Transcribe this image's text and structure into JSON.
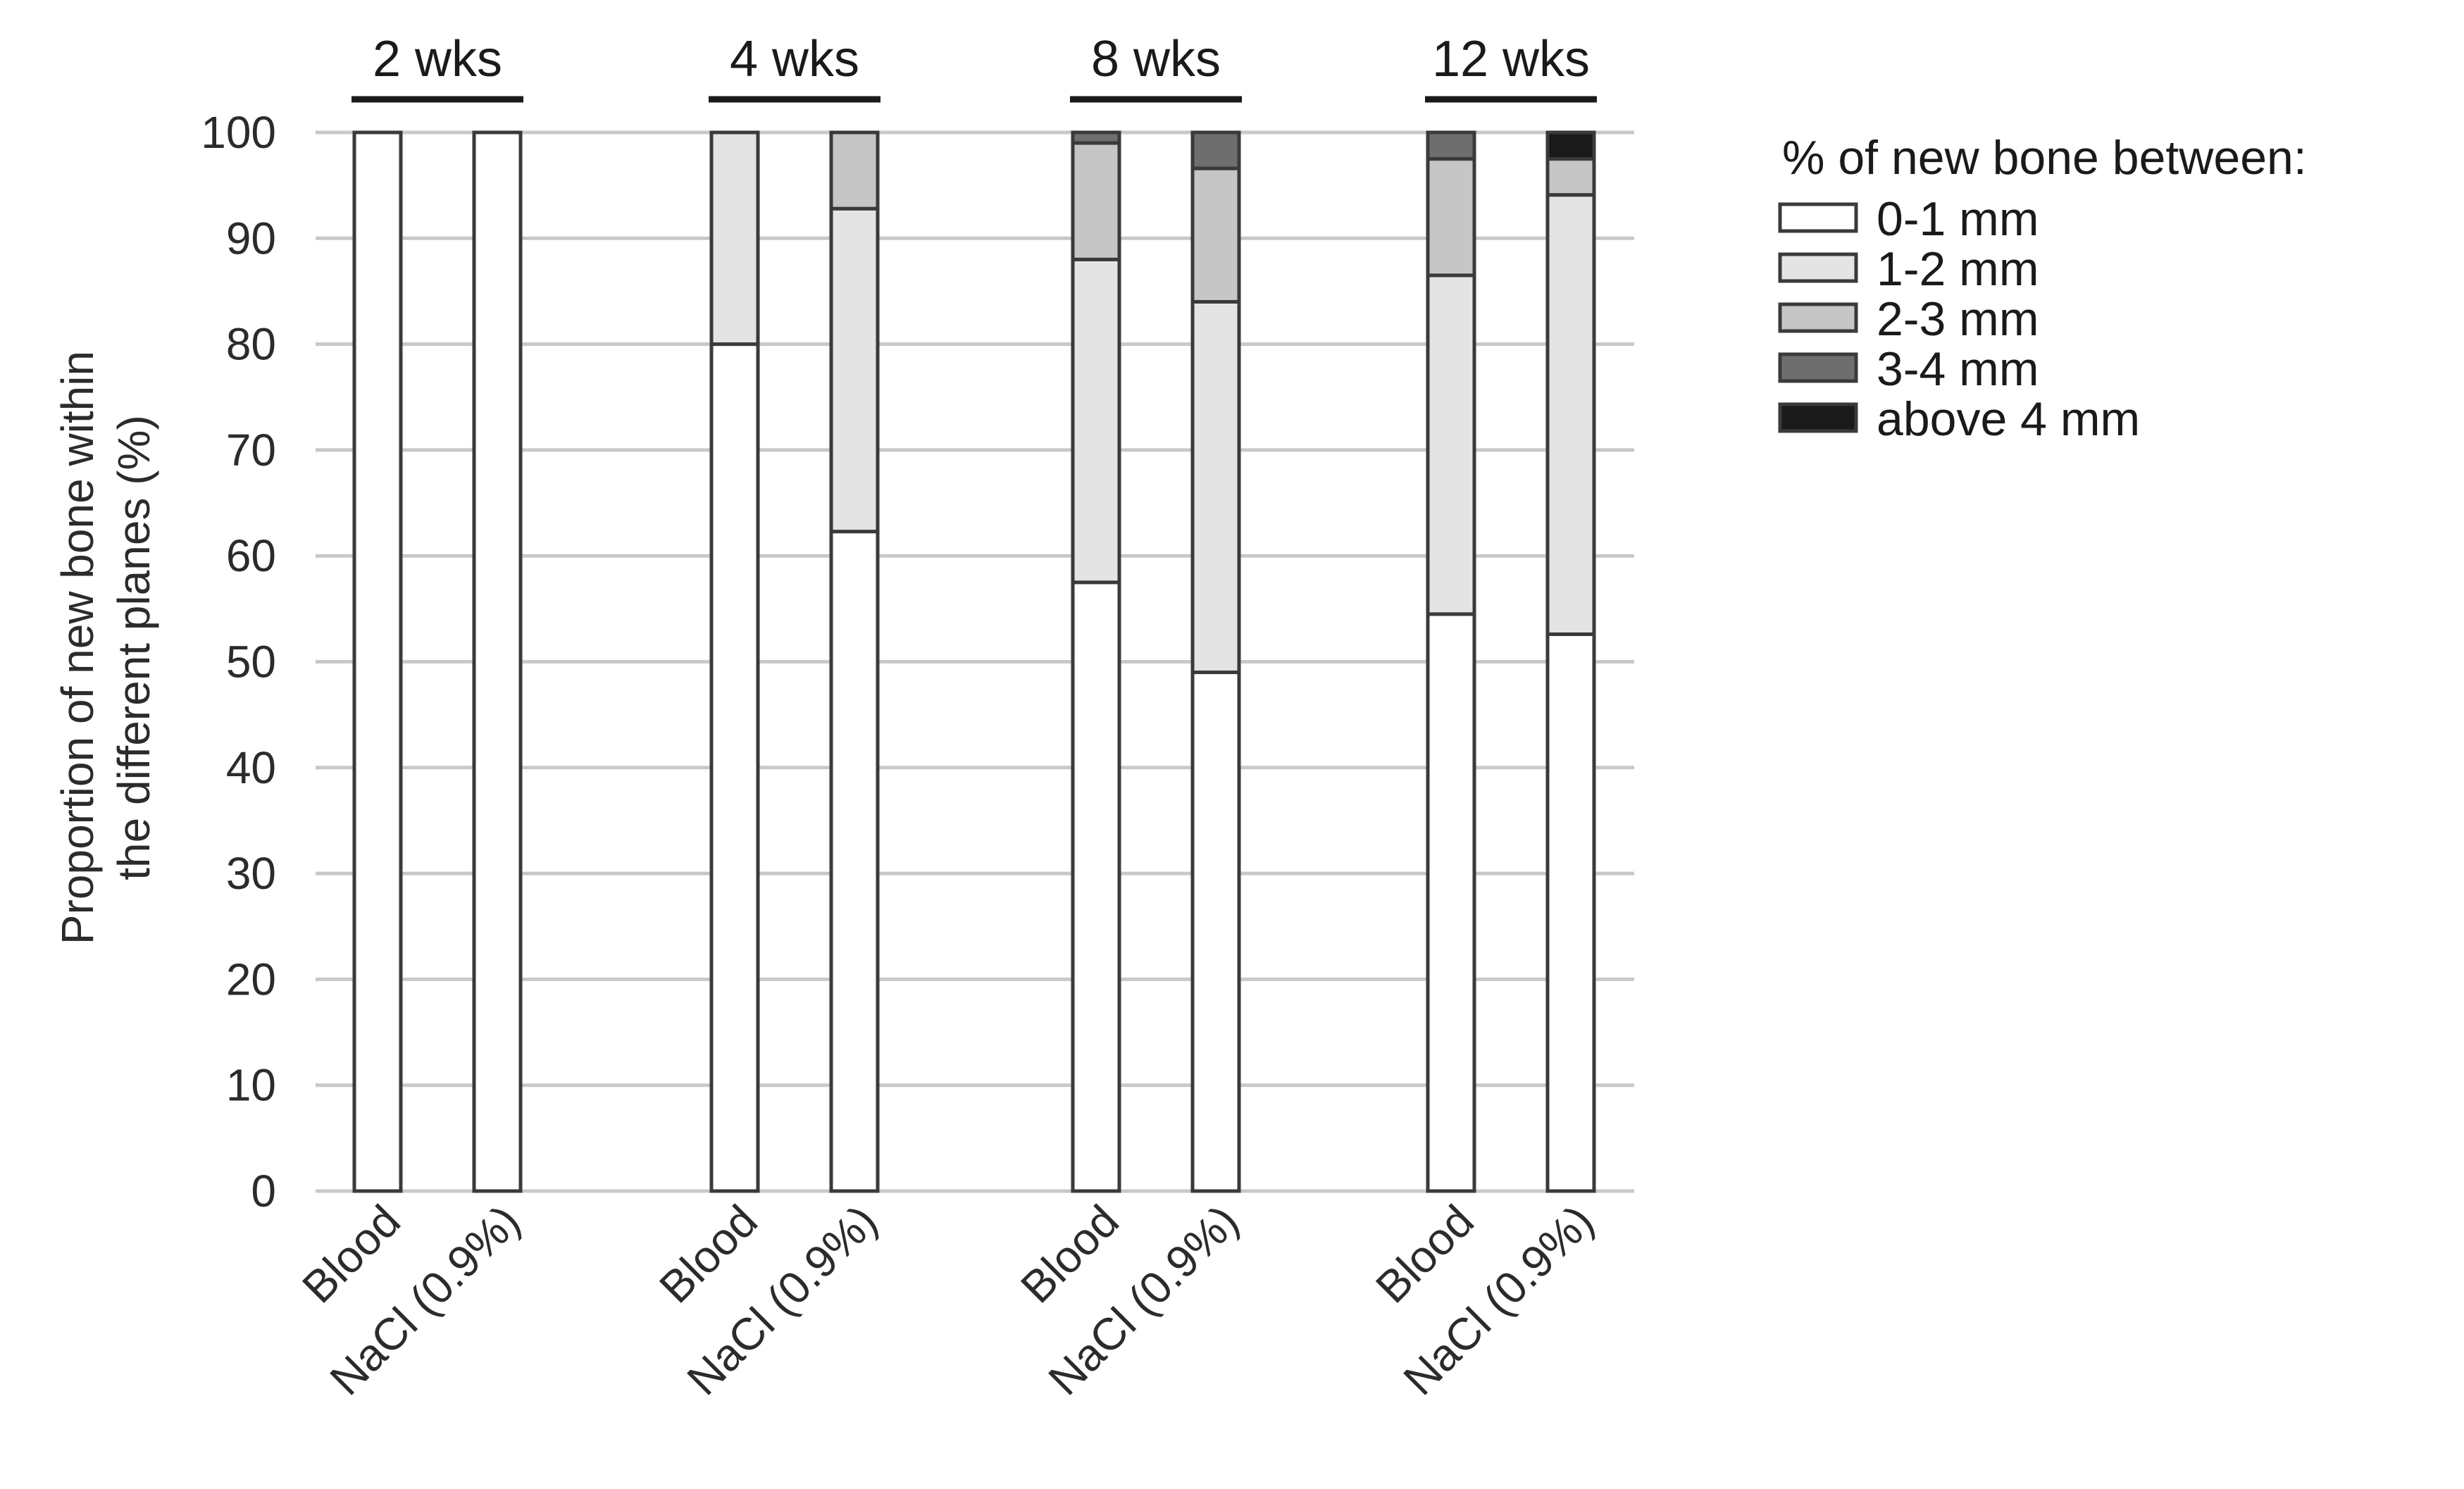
{
  "chart_data": {
    "type": "bar",
    "stacked": true,
    "title": "",
    "xlabel": "",
    "ylabel": "Proportion of new bone within the different planes (%)",
    "ylabel_lines": [
      "Proportion of new bone within",
      "the different planes (%)"
    ],
    "ylim": [
      0,
      100
    ],
    "yticks": [
      0,
      10,
      20,
      30,
      40,
      50,
      60,
      70,
      80,
      90,
      100
    ],
    "grid": true,
    "legend_title": "% of new bone between:",
    "legend_position": "right",
    "groups": [
      "2 wks",
      "4 wks",
      "8 wks",
      "12 wks"
    ],
    "categories": [
      "Blood",
      "NaCl (0.9%)",
      "Blood",
      "NaCl (0.9%)",
      "Blood",
      "NaCl (0.9%)",
      "Blood",
      "NaCl (0.9%)"
    ],
    "series": [
      {
        "name": "0-1 mm",
        "color": "#ffffff",
        "values": [
          100,
          100,
          80,
          62.3,
          57.5,
          49,
          54.5,
          52.6
        ]
      },
      {
        "name": "1-2 mm",
        "color": "#e4e4e4",
        "values": [
          0,
          0,
          20,
          30.5,
          30.5,
          35,
          32,
          41.5
        ]
      },
      {
        "name": "2-3 mm",
        "color": "#c6c6c6",
        "values": [
          0,
          0,
          0,
          7.2,
          11,
          12.6,
          11,
          3.4
        ]
      },
      {
        "name": "3-4 mm",
        "color": "#6e6e6e",
        "values": [
          0,
          0,
          0,
          0,
          1,
          3.4,
          2.5,
          0
        ]
      },
      {
        "name": "above 4 mm",
        "color": "#1a1a1a",
        "values": [
          0,
          0,
          0,
          0,
          0,
          0,
          0,
          2.5
        ]
      }
    ]
  }
}
